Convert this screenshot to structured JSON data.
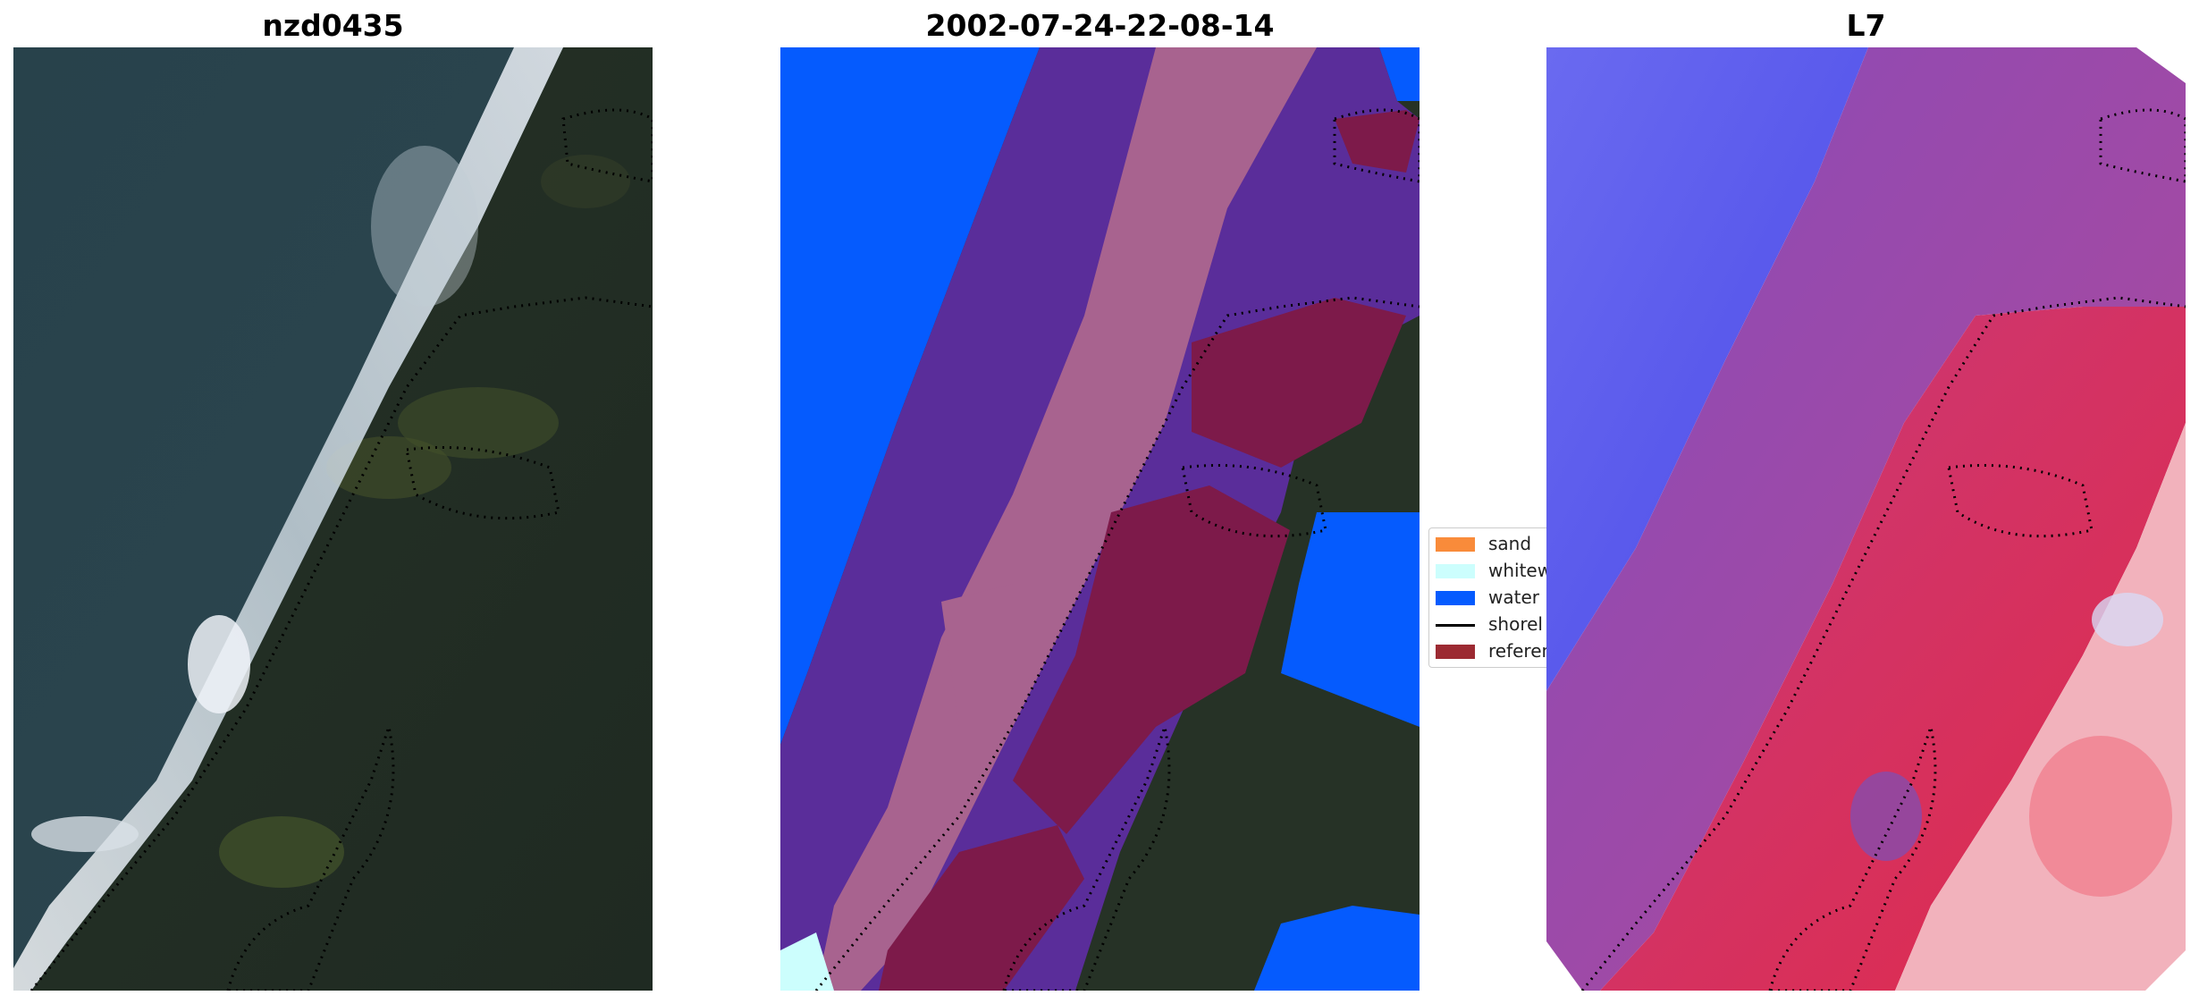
{
  "titles": {
    "left": "nzd0435",
    "middle": "2002-07-24-22-08-14",
    "right": "L7"
  },
  "legend": {
    "items": [
      {
        "label": "sand",
        "color": "#f98b3a"
      },
      {
        "label": "whitew",
        "color": "#ccfefd"
      },
      {
        "label": "water",
        "color": "#055bfe"
      },
      {
        "label": "shorel",
        "color": "#000000"
      },
      {
        "label": "referen",
        "color": "#9c2a32"
      }
    ]
  },
  "colors": {
    "ocean_rgb": "#27414a",
    "land_rgb": "#253025",
    "surf_white": "#e8eef4",
    "water_class": "#055bfe",
    "sand_overlay_purple": "#5a2d9a",
    "whitewater_overlay": "#a8638f",
    "reference_region": "#7d1a4a",
    "index_water": "#5555ee",
    "index_sand": "#9a3aa8",
    "index_land": "#dd3050",
    "index_bright": "#f2b8c0"
  }
}
